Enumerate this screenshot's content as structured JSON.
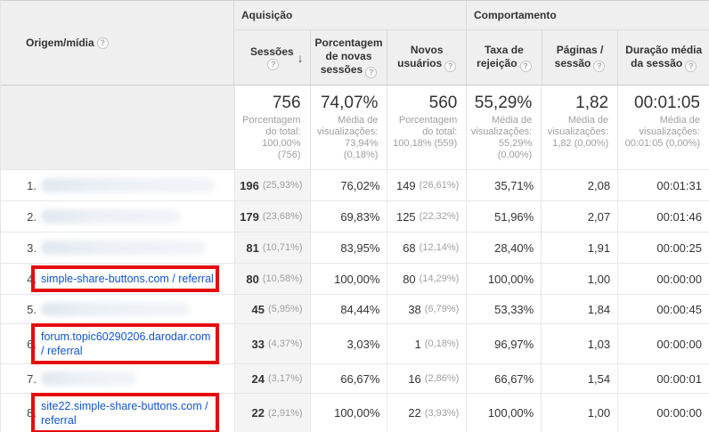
{
  "colors": {
    "link_blue": "#1155cc",
    "annotation_red": "#e60b0b",
    "header_gray": "#efefef"
  },
  "header": {
    "dimension_label": "Origem/mídia",
    "help_icon": "?",
    "sort_icon": "↓",
    "groups": {
      "acquisition": "Aquisição",
      "behavior": "Comportamento"
    },
    "columns": {
      "sessions": "Sessões",
      "pct_new_sessions": "Porcentagem de novas sessões",
      "new_users": "Novos usuários",
      "bounce_rate": "Taxa de rejeição",
      "pages_per_session": "Páginas / sessão",
      "avg_session_duration": "Duração média da sessão"
    }
  },
  "totals": {
    "sessions": {
      "value": "756",
      "note": "Porcentagem do total: 100,00% (756)"
    },
    "pct_new_sessions": {
      "value": "74,07%",
      "note": "Média de visualizações: 73,94% (0,18%)"
    },
    "new_users": {
      "value": "560",
      "note": "Porcentagem do total: 100,18% (559)"
    },
    "bounce_rate": {
      "value": "55,29%",
      "note": "Média de visualizações: 55,29% (0,00%)"
    },
    "pages_per_session": {
      "value": "1,82",
      "note": "Média de visualizações: 1,82 (0,00%)"
    },
    "avg_session_duration": {
      "value": "00:01:05",
      "note": "Média de visualizações: 00:01:05 (0,00%)"
    }
  },
  "rows": [
    {
      "index": "1.",
      "source": "",
      "redacted": true,
      "highlighted": false,
      "sessions": "196",
      "sessions_share": "(25,93%)",
      "pct_new_sessions": "76,02%",
      "new_users": "149",
      "new_users_share": "(26,61%)",
      "bounce_rate": "35,71%",
      "pages_per_session": "2,08",
      "avg_session_duration": "00:01:31"
    },
    {
      "index": "2.",
      "source": "",
      "redacted": true,
      "highlighted": false,
      "sessions": "179",
      "sessions_share": "(23,68%)",
      "pct_new_sessions": "69,83%",
      "new_users": "125",
      "new_users_share": "(22,32%)",
      "bounce_rate": "51,96%",
      "pages_per_session": "2,07",
      "avg_session_duration": "00:01:46"
    },
    {
      "index": "3.",
      "source": "",
      "redacted": true,
      "highlighted": false,
      "sessions": "81",
      "sessions_share": "(10,71%)",
      "pct_new_sessions": "83,95%",
      "new_users": "68",
      "new_users_share": "(12,14%)",
      "bounce_rate": "28,40%",
      "pages_per_session": "1,91",
      "avg_session_duration": "00:00:25"
    },
    {
      "index": "4.",
      "source": "simple-share-buttons.com / referral",
      "redacted": false,
      "highlighted": true,
      "sessions": "80",
      "sessions_share": "(10,58%)",
      "pct_new_sessions": "100,00%",
      "new_users": "80",
      "new_users_share": "(14,29%)",
      "bounce_rate": "100,00%",
      "pages_per_session": "1,00",
      "avg_session_duration": "00:00:00"
    },
    {
      "index": "5.",
      "source": "",
      "redacted": true,
      "highlighted": false,
      "sessions": "45",
      "sessions_share": "(5,95%)",
      "pct_new_sessions": "84,44%",
      "new_users": "38",
      "new_users_share": "(6,79%)",
      "bounce_rate": "53,33%",
      "pages_per_session": "1,84",
      "avg_session_duration": "00:00:45"
    },
    {
      "index": "6.",
      "source": "forum.topic60290206.darodar.com / referral",
      "redacted": false,
      "highlighted": true,
      "sessions": "33",
      "sessions_share": "(4,37%)",
      "pct_new_sessions": "3,03%",
      "new_users": "1",
      "new_users_share": "(0,18%)",
      "bounce_rate": "96,97%",
      "pages_per_session": "1,03",
      "avg_session_duration": "00:00:00"
    },
    {
      "index": "7.",
      "source": "",
      "redacted": true,
      "highlighted": false,
      "sessions": "24",
      "sessions_share": "(3,17%)",
      "pct_new_sessions": "66,67%",
      "new_users": "16",
      "new_users_share": "(2,86%)",
      "bounce_rate": "66,67%",
      "pages_per_session": "1,54",
      "avg_session_duration": "00:00:01"
    },
    {
      "index": "8.",
      "source": "site22.simple-share-buttons.com / referral",
      "redacted": false,
      "highlighted": true,
      "sessions": "22",
      "sessions_share": "(2,91%)",
      "pct_new_sessions": "100,00%",
      "new_users": "22",
      "new_users_share": "(3,93%)",
      "bounce_rate": "100,00%",
      "pages_per_session": "1,00",
      "avg_session_duration": "00:00:00"
    }
  ]
}
